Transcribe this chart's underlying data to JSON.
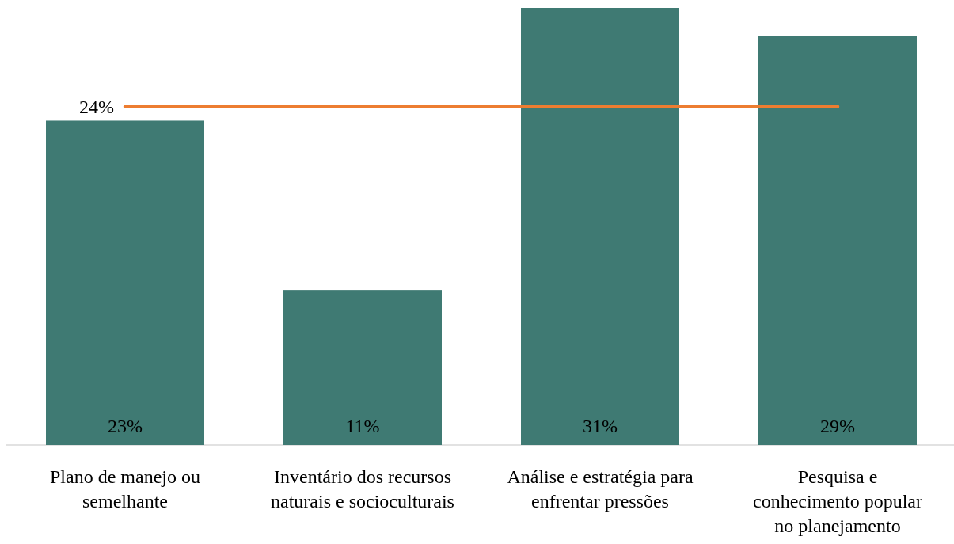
{
  "chart_data": {
    "type": "bar",
    "categories": [
      "Plano de manejo ou\nsemelhante",
      "Inventário dos recursos\nnaturais e socioculturais",
      "Análise e estratégia para\nenfrentar pressões",
      "Pesquisa e\nconhecimento popular\nno planejamento"
    ],
    "series": [
      {
        "color": "#3f7a73",
        "values": [
          23,
          11,
          31,
          29
        ],
        "value_labels": [
          "23%",
          "11%",
          "31%",
          "29%"
        ]
      },
      {
        "type": "line",
        "color": "#ed7d31",
        "values": [
          24,
          24,
          24,
          24
        ],
        "value_labels": [
          "24%",
          null,
          null,
          null
        ]
      }
    ],
    "marker": "none",
    "line_style": "solid",
    "tick_labels": "x"
  }
}
